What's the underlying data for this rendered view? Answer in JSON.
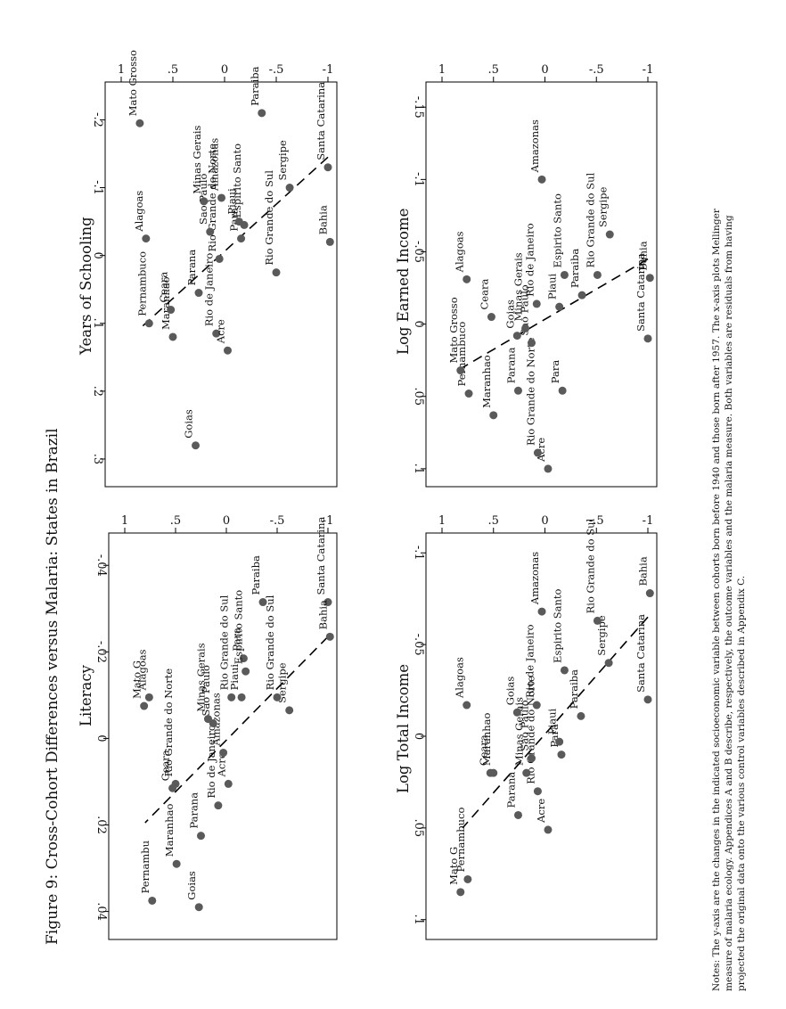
{
  "figure_title": "Figure 9:  Cross-Cohort Differences versus Malaria:  States in Brazil",
  "notes": [
    "Notes: The y-axis are the changes in the indicated socioeconomic variable between cohorts born before 1940 and those born after 1957.  The x-axis plots Mellinger",
    "measure of malaria ecology.  Appendices A  and B describe, respectively, the outcome variables and the malaria measure.  Both variables are residuals from having",
    "projected the original data onto the various control variables described in Appendix C."
  ],
  "colors": {
    "points": "#5a5a5a",
    "lines": "#000000",
    "background": "#ffffff"
  },
  "chart_data": [
    {
      "type": "scatter",
      "title": "Literacy",
      "xlabel": "",
      "ylabel": "",
      "xlim": [
        -1.2,
        1.05
      ],
      "ylim": [
        -0.045,
        0.044
      ],
      "xticks": [
        -1,
        -0.5,
        0,
        0.5,
        1
      ],
      "xtick_labels": [
        "-1",
        "-.5",
        "0",
        ".5",
        "1"
      ],
      "yticks": [
        0.04,
        0.02,
        0,
        -0.02,
        -0.04
      ],
      "ytick_labels": [
        ".04",
        ".02",
        "0",
        "-.02",
        "-.04"
      ],
      "fit_line": [
        [
          -1.0,
          -0.0235
        ],
        [
          0.8,
          0.0195
        ]
      ],
      "points": [
        {
          "label": "Pernambuco",
          "x": 0.73,
          "y": 0.0375,
          "label_text": "Pernambu"
        },
        {
          "label": "Maranhao",
          "x": 0.49,
          "y": 0.029
        },
        {
          "label": "Goias",
          "x": 0.27,
          "y": 0.039
        },
        {
          "label": "Parana",
          "x": 0.25,
          "y": 0.0225
        },
        {
          "label": "Ceara",
          "x": 0.53,
          "y": 0.0115
        },
        {
          "label": "Rio Grande do Norte",
          "x": 0.5,
          "y": 0.0105
        },
        {
          "label": "Rio de Janeiro",
          "x": 0.08,
          "y": 0.0155
        },
        {
          "label": "Acre",
          "x": -0.02,
          "y": 0.0105
        },
        {
          "label": "Amazonas",
          "x": 0.03,
          "y": 0.0033
        },
        {
          "label": "Sao Paulo",
          "x": 0.13,
          "y": -0.0035
        },
        {
          "label": "Minas Gerais",
          "x": 0.18,
          "y": -0.0045
        },
        {
          "label": "Mato Grosso",
          "x": 0.81,
          "y": -0.0075,
          "label_text": "Mato G"
        },
        {
          "label": "Alagoas",
          "x": 0.76,
          "y": -0.0095
        },
        {
          "label": "Rio Grande do Sul",
          "x": -0.05,
          "y": -0.0095,
          "label_text": "Rio Grande do Sul"
        },
        {
          "label": "Piaui",
          "x": -0.15,
          "y": -0.0095
        },
        {
          "label": "Para",
          "x": -0.17,
          "y": -0.0185
        },
        {
          "label": "Espirito Santo",
          "x": -0.19,
          "y": -0.0155
        },
        {
          "label": "Sergipe",
          "x": -0.62,
          "y": -0.0065
        },
        {
          "label": "Rio Grande do Sul",
          "x": -0.5,
          "y": -0.0095,
          "label_text": "Rio Grande do Sul"
        },
        {
          "label": "Paraiba",
          "x": -0.36,
          "y": -0.0315
        },
        {
          "label": "Santa Catarina",
          "x": -1.0,
          "y": -0.0315
        },
        {
          "label": "Bahia",
          "x": -1.02,
          "y": -0.0235
        }
      ]
    },
    {
      "type": "scatter",
      "title": "Years of Schooling",
      "xlabel": "",
      "ylabel": "",
      "xlim": [
        -1.2,
        1.05
      ],
      "ylim": [
        -0.24,
        0.325
      ],
      "xticks": [
        -1,
        -0.5,
        0,
        0.5,
        1
      ],
      "xtick_labels": [
        "-1",
        "-.5",
        "0",
        ".5",
        "1"
      ],
      "yticks": [
        0.3,
        0.2,
        0.1,
        0,
        -0.1,
        -0.2
      ],
      "ytick_labels": [
        ".3",
        ".2",
        ".1",
        "0",
        "-.1",
        "-.2"
      ],
      "fit_line": [
        [
          -1.0,
          -0.145
        ],
        [
          0.8,
          0.105
        ]
      ],
      "points": [
        {
          "label": "Goias",
          "x": 0.28,
          "y": 0.28
        },
        {
          "label": "Pernambuco",
          "x": 0.73,
          "y": 0.1
        },
        {
          "label": "Maranhao",
          "x": 0.5,
          "y": 0.12
        },
        {
          "label": "Ceara",
          "x": 0.52,
          "y": 0.08
        },
        {
          "label": "Rio de Janeiro",
          "x": 0.08,
          "y": 0.115
        },
        {
          "label": "Acre",
          "x": -0.03,
          "y": 0.14
        },
        {
          "label": "Parana",
          "x": 0.25,
          "y": 0.055
        },
        {
          "label": "Rio Grande do Norte",
          "x": 0.05,
          "y": 0.005
        },
        {
          "label": "Alagoas",
          "x": 0.76,
          "y": -0.025
        },
        {
          "label": "Sao Paulo",
          "x": 0.14,
          "y": -0.035
        },
        {
          "label": "Minas Gerais",
          "x": 0.2,
          "y": -0.08
        },
        {
          "label": "Amazonas",
          "x": 0.03,
          "y": -0.085
        },
        {
          "label": "Rio Grande do Sul",
          "x": -0.5,
          "y": 0.025
        },
        {
          "label": "Para",
          "x": -0.16,
          "y": -0.025
        },
        {
          "label": "Espirito Santo",
          "x": -0.19,
          "y": -0.045
        },
        {
          "label": "Piaui",
          "x": -0.14,
          "y": -0.05
        },
        {
          "label": "Mato Grosso",
          "x": 0.82,
          "y": -0.195
        },
        {
          "label": "Paraiba",
          "x": -0.36,
          "y": -0.21
        },
        {
          "label": "Sergipe",
          "x": -0.63,
          "y": -0.1
        },
        {
          "label": "Santa Catarina",
          "x": -1.0,
          "y": -0.13
        },
        {
          "label": "Bahia",
          "x": -1.02,
          "y": -0.02
        }
      ]
    },
    {
      "type": "scatter",
      "title": "Log Total Income",
      "xlabel": "",
      "ylabel": "",
      "xlim": [
        -1.2,
        1.05
      ],
      "ylim": [
        -0.105,
        0.105
      ],
      "xticks": [
        -1,
        -0.5,
        0,
        0.5,
        1
      ],
      "xtick_labels": [
        "-1",
        "-.5",
        "0",
        ".5",
        "1"
      ],
      "yticks": [
        0.1,
        0.05,
        0,
        -0.05,
        -0.1
      ],
      "ytick_labels": [
        ".1",
        ".05",
        "0",
        "-.05",
        "-.1"
      ],
      "fit_line": [
        [
          -1.0,
          -0.065
        ],
        [
          0.8,
          0.05
        ]
      ],
      "points": [
        {
          "label": "Mato Grosso",
          "x": 0.82,
          "y": 0.085,
          "label_text": "Mato G"
        },
        {
          "label": "Pernambuco",
          "x": 0.75,
          "y": 0.078
        },
        {
          "label": "Acre",
          "x": -0.03,
          "y": 0.051
        },
        {
          "label": "Parana",
          "x": 0.26,
          "y": 0.043
        },
        {
          "label": "Rio Grande do Norte",
          "x": 0.07,
          "y": 0.03
        },
        {
          "label": "Minas Gerais",
          "x": 0.18,
          "y": 0.02
        },
        {
          "label": "Sao Paulo",
          "x": 0.13,
          "y": 0.012
        },
        {
          "label": "Maranhao",
          "x": 0.5,
          "y": 0.02
        },
        {
          "label": "Ceara",
          "x": 0.53,
          "y": 0.02
        },
        {
          "label": "Alagoas",
          "x": 0.76,
          "y": -0.017
        },
        {
          "label": "Goias",
          "x": 0.27,
          "y": -0.013
        },
        {
          "label": "Rio de Janeiro",
          "x": 0.08,
          "y": -0.017
        },
        {
          "label": "Para",
          "x": -0.16,
          "y": 0.01
        },
        {
          "label": "Piaui",
          "x": -0.14,
          "y": 0.003
        },
        {
          "label": "Espirito Santo",
          "x": -0.19,
          "y": -0.036
        },
        {
          "label": "Paraiba",
          "x": -0.35,
          "y": -0.011
        },
        {
          "label": "Sergipe",
          "x": -0.62,
          "y": -0.04
        },
        {
          "label": "Santa Catarina",
          "x": -1.0,
          "y": -0.02
        },
        {
          "label": "Rio Grande do Sul",
          "x": -0.51,
          "y": -0.063
        },
        {
          "label": "Amazonas",
          "x": 0.03,
          "y": -0.068
        },
        {
          "label": "Bahia",
          "x": -1.02,
          "y": -0.078
        }
      ]
    },
    {
      "type": "scatter",
      "title": "Log Earned Income",
      "xlabel": "",
      "ylabel": "",
      "xlim": [
        -1.2,
        1.05
      ],
      "ylim": [
        -0.16,
        0.105
      ],
      "xticks": [
        -1,
        -0.5,
        0,
        0.5,
        1
      ],
      "xtick_labels": [
        "-1",
        "-.5",
        "0",
        ".5",
        "1"
      ],
      "yticks": [
        0.1,
        0.05,
        0,
        -0.05,
        -0.1,
        -0.15
      ],
      "ytick_labels": [
        ".1",
        ".05",
        "0",
        "-.05",
        "-.1",
        "-.15"
      ],
      "fit_line": [
        [
          -1.0,
          -0.045
        ],
        [
          0.8,
          0.03
        ]
      ],
      "points": [
        {
          "label": "Acre",
          "x": -0.03,
          "y": 0.1
        },
        {
          "label": "Rio Grande do Norte",
          "x": 0.07,
          "y": 0.089
        },
        {
          "label": "Maranhao",
          "x": 0.5,
          "y": 0.063
        },
        {
          "label": "Pernambuco",
          "x": 0.74,
          "y": 0.048
        },
        {
          "label": "Mato Grosso",
          "x": 0.82,
          "y": 0.032
        },
        {
          "label": "Parana",
          "x": 0.26,
          "y": 0.046
        },
        {
          "label": "Para",
          "x": -0.17,
          "y": 0.046
        },
        {
          "label": "Sao Paulo",
          "x": 0.13,
          "y": 0.013
        },
        {
          "label": "Minas Gerais",
          "x": 0.19,
          "y": 0.003
        },
        {
          "label": "Goias",
          "x": 0.27,
          "y": 0.008
        },
        {
          "label": "Ceara",
          "x": 0.52,
          "y": -0.005
        },
        {
          "label": "Rio de Janeiro",
          "x": 0.08,
          "y": -0.014
        },
        {
          "label": "Piaui",
          "x": -0.14,
          "y": -0.012
        },
        {
          "label": "Alagoas",
          "x": 0.76,
          "y": -0.031
        },
        {
          "label": "Paraiba",
          "x": -0.36,
          "y": -0.02
        },
        {
          "label": "Espirito Santo",
          "x": -0.19,
          "y": -0.034
        },
        {
          "label": "Rio Grande do Sul",
          "x": -0.51,
          "y": -0.034
        },
        {
          "label": "Sergipe",
          "x": -0.63,
          "y": -0.062
        },
        {
          "label": "Amazonas",
          "x": 0.03,
          "y": -0.1
        },
        {
          "label": "Santa Catarina",
          "x": -1.0,
          "y": 0.01
        },
        {
          "label": "Bahia",
          "x": -1.02,
          "y": -0.032
        }
      ]
    }
  ]
}
